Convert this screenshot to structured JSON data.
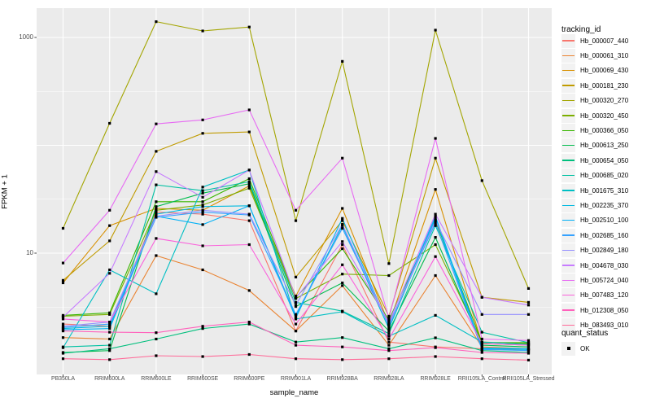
{
  "figure": {
    "background": "#FFFFFF",
    "panel_background": "#EBEBEB",
    "gridline_color": "#FFFFFF",
    "tick_color": "#333333",
    "tick_label_color": "#4D4D4D"
  },
  "chart_data": {
    "type": "line",
    "title": "",
    "xlabel": "sample_name",
    "ylabel": "FPKM + 1",
    "y_scale": "log10",
    "ylim": [
      1,
      1500
    ],
    "grid": true,
    "legend_position": "right",
    "y_ticks": [
      {
        "label": "1000",
        "value": 1000
      },
      {
        "label": "10",
        "value": 10
      }
    ],
    "y_major_gridlines": [
      10,
      100,
      1000
    ],
    "y_minor_gridlines": [
      3.162,
      31.623,
      316.228
    ],
    "point_marker": "black-square",
    "categories": [
      "PB350LA",
      "RRIM600LA",
      "RRIM600LE",
      "RRIM600SE",
      "RRIM600PE",
      "RRIM901LA",
      "RRIM928BA",
      "RRIM928LA",
      "RRIM928LE",
      "RRII105LA_Control",
      "RRII105LA_Stressed"
    ],
    "series": [
      {
        "name": "Hb_000007_440",
        "color": "#F8766D",
        "values": [
          2.2,
          2.1,
          24,
          23,
          20,
          1.9,
          12,
          1.5,
          1.35,
          1.3,
          1.25
        ]
      },
      {
        "name": "Hb_000061_310",
        "color": "#EA8331",
        "values": [
          1.65,
          1.6,
          9.5,
          7.0,
          4.5,
          1.9,
          5.0,
          1.4,
          6.2,
          1.35,
          1.3
        ]
      },
      {
        "name": "Hb_000069_430",
        "color": "#D89000",
        "values": [
          5.3,
          18,
          26,
          25,
          42,
          4.0,
          26,
          2.2,
          39,
          1.45,
          1.4
        ]
      },
      {
        "name": "Hb_000181_230",
        "color": "#C09B00",
        "values": [
          5.6,
          13,
          88,
          129,
          133,
          6.0,
          20,
          2.6,
          76,
          3.9,
          3.5
        ]
      },
      {
        "name": "Hb_000320_270",
        "color": "#A3A500",
        "values": [
          17,
          160,
          1400,
          1150,
          1250,
          20,
          600,
          8.0,
          1170,
          47,
          4.7
        ]
      },
      {
        "name": "Hb_000320_450",
        "color": "#7CAE00",
        "values": [
          2.6,
          2.7,
          25,
          28,
          40,
          3.8,
          6.4,
          6.2,
          12,
          1.5,
          1.45
        ]
      },
      {
        "name": "Hb_000366_050",
        "color": "#39B600",
        "values": [
          2.65,
          2.8,
          30,
          30,
          49,
          3.9,
          11,
          2.4,
          20,
          1.48,
          1.48
        ]
      },
      {
        "name": "Hb_000613_250",
        "color": "#00BB4E",
        "values": [
          1.2,
          1.25,
          27,
          36,
          44,
          3.2,
          5.3,
          1.9,
          14,
          1.4,
          1.35
        ]
      },
      {
        "name": "Hb_000654_050",
        "color": "#00BF7D",
        "values": [
          1.18,
          1.3,
          1.6,
          2.0,
          2.2,
          1.5,
          1.65,
          1.3,
          1.64,
          1.25,
          1.2
        ]
      },
      {
        "name": "Hb_000685_020",
        "color": "#00C1A3",
        "values": [
          1.35,
          1.4,
          43,
          38,
          46,
          3.5,
          2.9,
          1.8,
          18,
          1.85,
          1.48
        ]
      },
      {
        "name": "Hb_001675_310",
        "color": "#00BFC4",
        "values": [
          1.33,
          7.0,
          4.2,
          41,
          59,
          2.45,
          2.86,
          1.7,
          2.65,
          1.5,
          1.42
        ]
      },
      {
        "name": "Hb_002235_370",
        "color": "#00BAE0",
        "values": [
          2.0,
          2.1,
          23,
          27,
          27.5,
          2.6,
          18,
          2.0,
          21,
          1.3,
          1.28
        ]
      },
      {
        "name": "Hb_002510_100",
        "color": "#00B0F6",
        "values": [
          1.95,
          2.0,
          22,
          18.4,
          27.5,
          2.5,
          21,
          2.1,
          22,
          1.32,
          1.3
        ]
      },
      {
        "name": "Hb_002685_160",
        "color": "#35A2FF",
        "values": [
          2.05,
          2.2,
          21.5,
          24,
          22.6,
          2.7,
          17,
          2.2,
          19,
          1.28,
          1.25
        ]
      },
      {
        "name": "Hb_002849_180",
        "color": "#9590FF",
        "values": [
          2.1,
          2.3,
          22,
          25,
          23,
          3.3,
          18.5,
          2.15,
          20,
          2.7,
          2.7
        ]
      },
      {
        "name": "Hb_004678_030",
        "color": "#C77CFF",
        "values": [
          2.55,
          6.5,
          57,
          33,
          59,
          3.85,
          12.8,
          2.3,
          23,
          3.9,
          3.3
        ]
      },
      {
        "name": "Hb_005724_040",
        "color": "#E76BF3",
        "values": [
          8.1,
          25,
          158,
          172,
          213,
          25,
          76,
          2.5,
          116,
          1.6,
          1.55
        ]
      },
      {
        "name": "Hb_007483_120",
        "color": "#FA62DB",
        "values": [
          2.45,
          2.3,
          13.7,
          11.7,
          12,
          2.2,
          7.8,
          1.6,
          9.3,
          1.45,
          1.4
        ]
      },
      {
        "name": "Hb_012308_050",
        "color": "#FF62BC",
        "values": [
          1.9,
          1.85,
          1.83,
          2.1,
          2.3,
          1.4,
          1.35,
          1.25,
          1.33,
          1.2,
          1.18
        ]
      },
      {
        "name": "Hb_083493_010",
        "color": "#FF6A98",
        "values": [
          1.05,
          1.03,
          1.12,
          1.1,
          1.15,
          1.05,
          1.03,
          1.05,
          1.1,
          1.05,
          1.02
        ]
      }
    ],
    "legend": {
      "title": "tracking_id"
    },
    "quant_legend": {
      "title": "quant_status",
      "items": [
        {
          "label": "OK",
          "marker": "black-square"
        }
      ]
    }
  }
}
